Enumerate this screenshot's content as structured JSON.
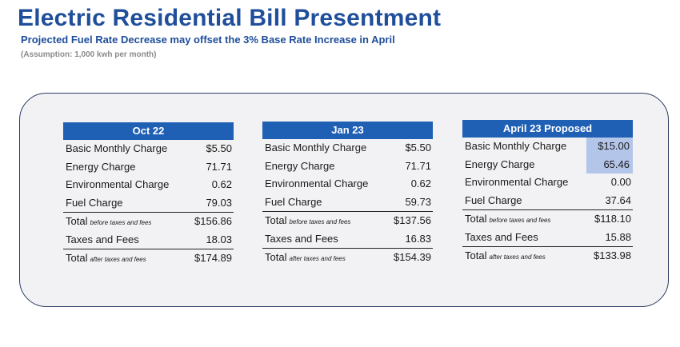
{
  "title": "Electric Residential Bill Presentment",
  "subtitle": "Projected Fuel Rate Decrease may offset the 3% Base Rate Increase in April",
  "assumption": "(Assumption: 1,000 kwh per month)",
  "bills": [
    {
      "header": "Oct 22",
      "rows": [
        {
          "label": "Basic Monthly Charge",
          "note": "",
          "value": "$5.50"
        },
        {
          "label": "Energy Charge",
          "note": "",
          "value": "71.71"
        },
        {
          "label": "Environmental Charge",
          "note": "",
          "value": "0.62"
        },
        {
          "label": "Fuel Charge",
          "note": "",
          "value": "79.03"
        },
        {
          "label": "Total",
          "note": "before taxes and fees",
          "value": "$156.86"
        },
        {
          "label": "Taxes and Fees",
          "note": "",
          "value": "18.03"
        },
        {
          "label": "Total",
          "note": "after taxes and fees",
          "value": "$174.89"
        }
      ]
    },
    {
      "header": "Jan 23",
      "rows": [
        {
          "label": "Basic Monthly Charge",
          "note": "",
          "value": "$5.50"
        },
        {
          "label": "Energy Charge",
          "note": "",
          "value": "71.71"
        },
        {
          "label": "Environmental Charge",
          "note": "",
          "value": "0.62"
        },
        {
          "label": "Fuel Charge",
          "note": "",
          "value": "59.73"
        },
        {
          "label": "Total",
          "note": "before taxes and fees",
          "value": "$137.56"
        },
        {
          "label": "Taxes and Fees",
          "note": "",
          "value": "16.83"
        },
        {
          "label": "Total",
          "note": "after taxes and fees",
          "value": "$154.39"
        }
      ]
    },
    {
      "header": "April 23 Proposed",
      "rows": [
        {
          "label": "Basic Monthly Charge",
          "note": "",
          "value": "$15.00"
        },
        {
          "label": "Energy Charge",
          "note": "",
          "value": "65.46"
        },
        {
          "label": "Environmental Charge",
          "note": "",
          "value": "0.00"
        },
        {
          "label": "Fuel Charge",
          "note": "",
          "value": "37.64"
        },
        {
          "label": "Total",
          "note": "before taxes and fees",
          "value": "$118.10"
        },
        {
          "label": "Taxes and Fees",
          "note": "",
          "value": "15.88"
        },
        {
          "label": "Total",
          "note": "after taxes and fees",
          "value": "$133.98"
        }
      ]
    }
  ],
  "colors": {
    "title": "#1f4e9a",
    "header_fill": "#1f5fb4",
    "highlight": "#b4c5ea",
    "panel_fill": "#f2f2f4"
  }
}
